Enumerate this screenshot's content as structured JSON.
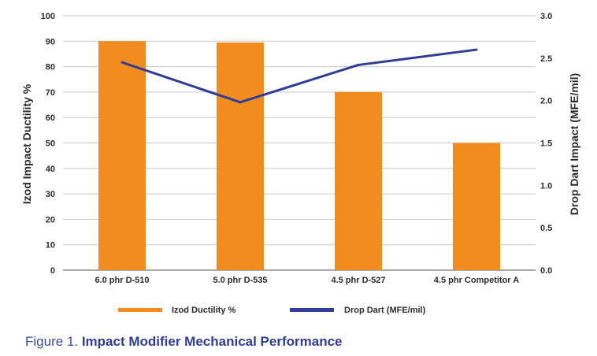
{
  "chart_data": {
    "type": "bar",
    "categories": [
      "6.0 phr D-510",
      "5.0 phr D-535",
      "4.5 phr D-527",
      "4.5 phr Competitor A"
    ],
    "series": [
      {
        "name": "Izod Ductility %",
        "kind": "bar",
        "axis": "left",
        "values": [
          90,
          89.5,
          70,
          50
        ],
        "color": "#f28c1f"
      },
      {
        "name": "Drop Dart (MFE/mil)",
        "kind": "line",
        "axis": "right",
        "values": [
          2.45,
          1.98,
          2.42,
          2.6
        ],
        "color": "#2f3d96"
      }
    ],
    "ylabel": "Izod Impact Ductility %",
    "y2label": "Drop Dart Impact (MFE/mil)",
    "ylim": [
      0,
      100
    ],
    "y2lim": [
      0,
      3.0
    ],
    "yticks": [
      "0",
      "10",
      "20",
      "30",
      "40",
      "50",
      "60",
      "70",
      "80",
      "90",
      "100"
    ],
    "y2ticks": [
      "0.0",
      "0.5",
      "1.0",
      "1.5",
      "2.0",
      "2.5",
      "3.0"
    ],
    "grid": true,
    "legend": "bottom"
  },
  "caption": {
    "prefix": "Figure 1.",
    "title": "Impact Modifier Mechanical Performance"
  }
}
